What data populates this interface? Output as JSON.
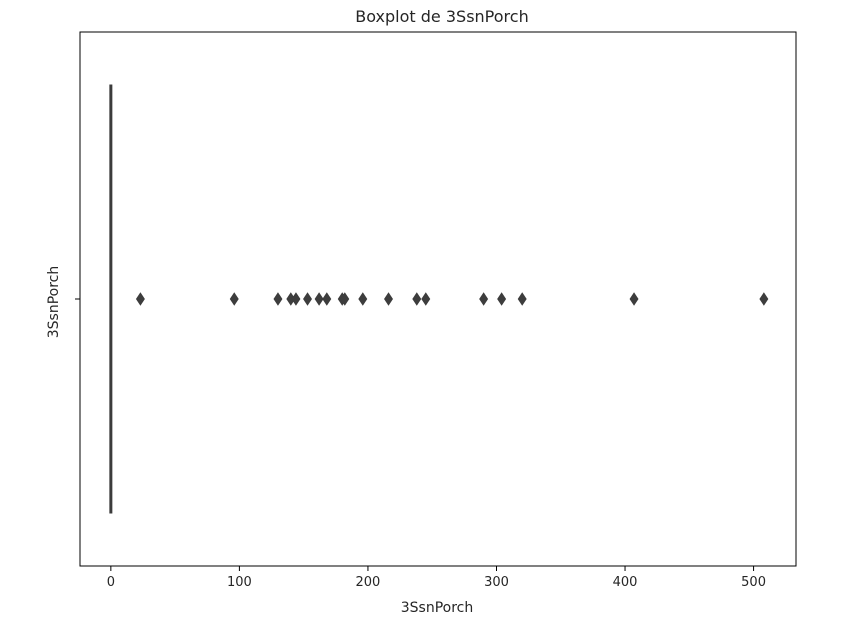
{
  "chart_data": {
    "type": "boxplot",
    "title": "Boxplot de 3SsnPorch",
    "xlabel": "3SsnPorch",
    "ylabel": "3SsnPorch",
    "xlim": [
      -24,
      533
    ],
    "x_ticks": [
      0,
      100,
      200,
      300,
      400,
      500
    ],
    "x_tick_labels": [
      "0",
      "100",
      "200",
      "300",
      "400",
      "500"
    ],
    "y_tick_labels": [
      ""
    ],
    "grid": false,
    "series": [
      {
        "box": {
          "min": 0,
          "q1": 0,
          "median": 0,
          "q3": 0,
          "max": 0
        },
        "outliers": [
          23,
          96,
          130,
          140,
          144,
          153,
          162,
          168,
          180,
          182,
          196,
          216,
          238,
          245,
          290,
          304,
          320,
          407,
          508
        ]
      }
    ],
    "colors": {
      "box": "#3d3d3d",
      "axes": "#000000",
      "text": "#262626"
    }
  }
}
